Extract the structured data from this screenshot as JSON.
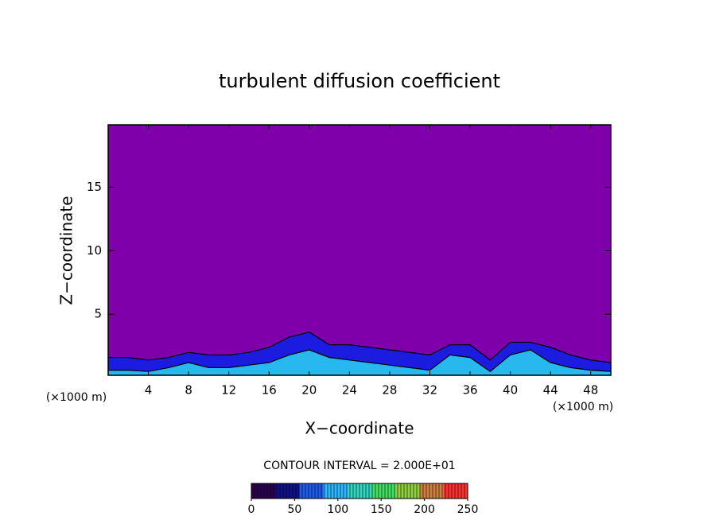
{
  "chart_data": {
    "type": "contour",
    "title": "turbulent diffusion coefficient",
    "x_label": "X−coordinate",
    "y_label": "Z−coordinate",
    "x_unit": "(×1000 m)",
    "y_unit": "(×1000 m)",
    "background_color": "#7f00aa",
    "xlim": [
      0,
      50
    ],
    "ylim": [
      0.2,
      19.9
    ],
    "xticks": [
      4,
      8,
      12,
      16,
      20,
      24,
      28,
      32,
      36,
      40,
      44,
      48
    ],
    "yticks": [
      5,
      10,
      15
    ],
    "x": [
      0,
      2,
      4,
      6,
      8,
      10,
      12,
      14,
      16,
      18,
      20,
      22,
      24,
      26,
      28,
      30,
      32,
      34,
      36,
      38,
      40,
      42,
      44,
      46,
      48,
      50
    ],
    "series": [
      {
        "color": "#1c1ce0",
        "values": [
          1.6,
          1.6,
          1.4,
          1.6,
          2.0,
          1.8,
          1.8,
          2.0,
          2.4,
          3.2,
          3.6,
          2.6,
          2.6,
          2.4,
          2.2,
          2.0,
          1.8,
          2.6,
          2.6,
          1.4,
          2.8,
          2.8,
          2.4,
          1.8,
          1.4,
          1.2
        ]
      },
      {
        "color": "#28b8f0",
        "values": [
          0.6,
          0.6,
          0.5,
          0.8,
          1.2,
          0.8,
          0.8,
          1.0,
          1.2,
          1.8,
          2.2,
          1.6,
          1.4,
          1.2,
          1.0,
          0.8,
          0.6,
          1.8,
          1.6,
          0.5,
          1.8,
          2.2,
          1.2,
          0.8,
          0.6,
          0.5
        ]
      }
    ],
    "contour_interval_label": "CONTOUR INTERVAL = 2.000E+01",
    "colorbar": {
      "lim": [
        0,
        250
      ],
      "ticks": [
        0,
        50,
        100,
        150,
        200,
        250
      ],
      "colors": [
        "#2a0050",
        "#10108c",
        "#1e5cf0",
        "#2ab8ff",
        "#30d8c0",
        "#40e060",
        "#90d040",
        "#d08040",
        "#ff3030"
      ]
    }
  }
}
